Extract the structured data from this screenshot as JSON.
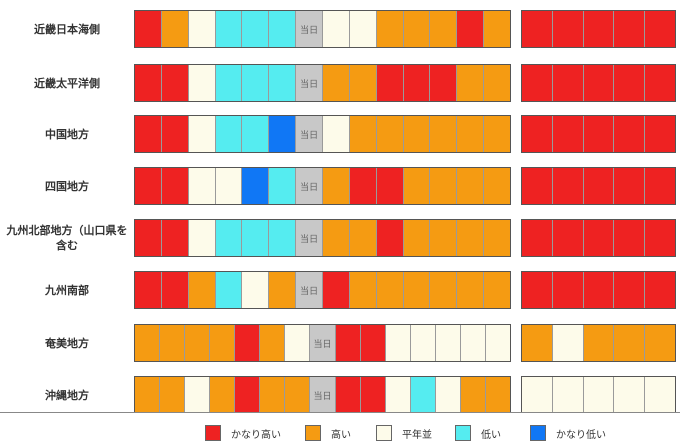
{
  "palette": {
    "very_high": "#ee2222",
    "high": "#f59b12",
    "normal": "#fdfbea",
    "low": "#55ecf0",
    "very_low": "#1077f5",
    "today": "#c8c8c8"
  },
  "today_label": "当日",
  "regions": [
    {
      "name": "近畿日本海側",
      "main": [
        "very_high",
        "high",
        "normal",
        "low",
        "low",
        "low",
        "today",
        "normal",
        "normal",
        "high",
        "high",
        "high",
        "very_high",
        "high"
      ],
      "ext": [
        "very_high",
        "very_high",
        "very_high",
        "very_high",
        "very_high"
      ]
    },
    {
      "name": "近畿太平洋側",
      "main": [
        "very_high",
        "very_high",
        "normal",
        "low",
        "low",
        "low",
        "today",
        "high",
        "high",
        "very_high",
        "very_high",
        "very_high",
        "high",
        "high"
      ],
      "ext": [
        "very_high",
        "very_high",
        "very_high",
        "very_high",
        "very_high"
      ]
    },
    {
      "name": "中国地方",
      "main": [
        "very_high",
        "very_high",
        "normal",
        "low",
        "low",
        "very_low",
        "today",
        "normal",
        "high",
        "high",
        "high",
        "high",
        "high",
        "high"
      ],
      "ext": [
        "very_high",
        "very_high",
        "very_high",
        "very_high",
        "very_high"
      ]
    },
    {
      "name": "四国地方",
      "main": [
        "very_high",
        "very_high",
        "normal",
        "normal",
        "very_low",
        "low",
        "today",
        "high",
        "very_high",
        "very_high",
        "high",
        "high",
        "high",
        "high"
      ],
      "ext": [
        "very_high",
        "very_high",
        "very_high",
        "very_high",
        "very_high"
      ]
    },
    {
      "name": "九州北部地方（山口県を含む",
      "main": [
        "very_high",
        "very_high",
        "normal",
        "low",
        "low",
        "low",
        "today",
        "high",
        "high",
        "very_high",
        "high",
        "high",
        "high",
        "high"
      ],
      "ext": [
        "very_high",
        "very_high",
        "very_high",
        "very_high",
        "very_high"
      ]
    },
    {
      "name": "九州南部",
      "main": [
        "very_high",
        "very_high",
        "high",
        "low",
        "normal",
        "high",
        "today",
        "very_high",
        "high",
        "high",
        "high",
        "high",
        "high",
        "high"
      ],
      "ext": [
        "very_high",
        "very_high",
        "very_high",
        "very_high",
        "very_high"
      ]
    },
    {
      "name": "奄美地方",
      "main": [
        "high",
        "high",
        "high",
        "high",
        "very_high",
        "high",
        "normal",
        "today",
        "very_high",
        "very_high",
        "normal",
        "normal",
        "normal",
        "normal",
        "normal"
      ],
      "ext": [
        "high",
        "normal",
        "high",
        "high",
        "high"
      ]
    },
    {
      "name": "沖縄地方",
      "main": [
        "high",
        "high",
        "normal",
        "high",
        "very_high",
        "high",
        "high",
        "today",
        "very_high",
        "very_high",
        "normal",
        "low",
        "normal",
        "high",
        "high"
      ],
      "ext": [
        "normal",
        "normal",
        "normal",
        "normal",
        "normal"
      ]
    }
  ],
  "legend": [
    {
      "key": "very_high",
      "label": "かなり高い"
    },
    {
      "key": "high",
      "label": "高い"
    },
    {
      "key": "normal",
      "label": "平年並"
    },
    {
      "key": "low",
      "label": "低い"
    },
    {
      "key": "very_low",
      "label": "かなり低い"
    }
  ]
}
